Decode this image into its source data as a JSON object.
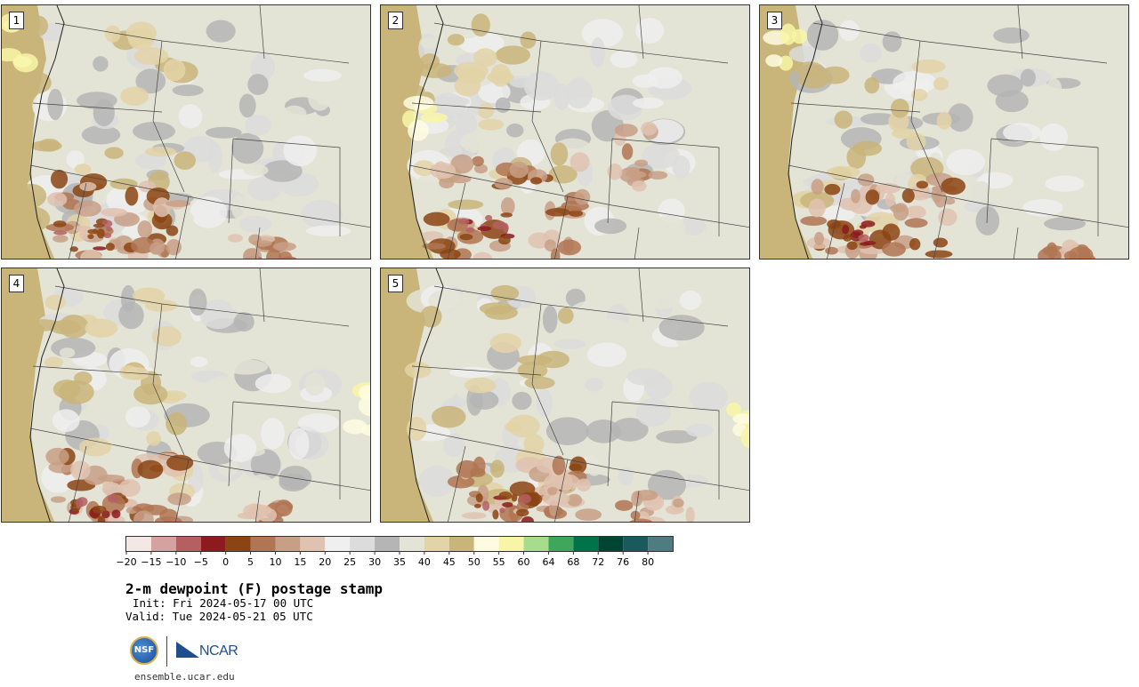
{
  "panels": [
    {
      "number": "1"
    },
    {
      "number": "2"
    },
    {
      "number": "3"
    },
    {
      "number": "4"
    },
    {
      "number": "5"
    }
  ],
  "colorbar": {
    "colors": [
      "#f4e8e6",
      "#d3a2a1",
      "#b55f61",
      "#8c1a1e",
      "#8b4413",
      "#b07552",
      "#c89f86",
      "#e0c2b0",
      "#efefef",
      "#dcdcdc",
      "#b5b5b5",
      "#e3e3d6",
      "#e3d4a7",
      "#c9b57a",
      "#fefbe0",
      "#f8f6a6",
      "#a8dc8d",
      "#3da85c",
      "#00734a",
      "#004432",
      "#1a5a5d",
      "#4f7c80"
    ],
    "tick_labels": [
      "−20",
      "−15",
      "−10",
      "−5",
      "0",
      "5",
      "10",
      "15",
      "20",
      "25",
      "30",
      "35",
      "40",
      "45",
      "50",
      "55",
      "60",
      "64",
      "68",
      "72",
      "76",
      "80"
    ]
  },
  "title": "2-m dewpoint (F) postage stamp",
  "init": "Init: Fri 2024-05-17 00 UTC",
  "valid": "Valid: Tue 2024-05-21 05 UTC",
  "logos": {
    "nsf": "NSF",
    "ncar": "NCAR"
  },
  "url": "ensemble.ucar.edu"
}
